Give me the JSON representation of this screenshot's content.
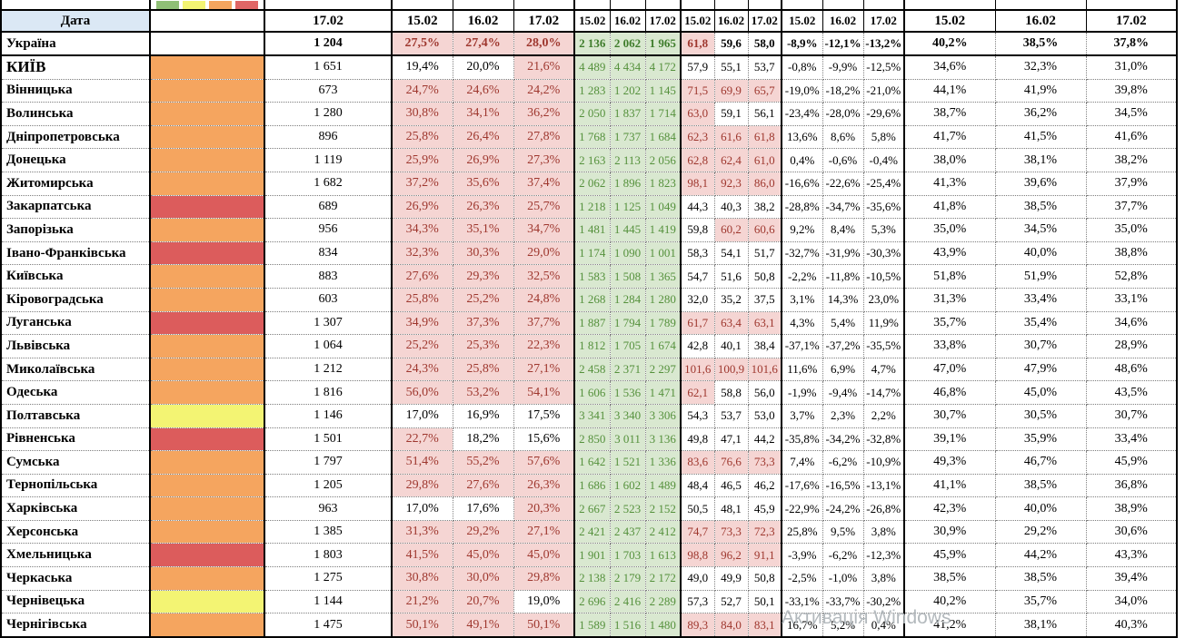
{
  "table": {
    "corner_header": "Дата",
    "single_col_header": "17.02",
    "date_headers": [
      "15.02",
      "16.02",
      "17.02"
    ],
    "group_count": 5
  },
  "legend": {
    "swatches": [
      {
        "name": "green",
        "color": "#8fbf76"
      },
      {
        "name": "yellow",
        "color": "#f3f473"
      },
      {
        "name": "orange",
        "color": "#f5a55f"
      },
      {
        "name": "red",
        "color": "#e06666"
      }
    ]
  },
  "status_colors": {
    "orange": "#f5a55f",
    "red": "#dc5c5c",
    "yellow": "#f3f473"
  },
  "format_rules": {
    "pct_highlight_above": 20,
    "load_highlight_above": 60,
    "highlight_bg": "#f5d5d3",
    "highlight_text": "#9e372e",
    "green_bg": "#d9e8d0",
    "green_text": "#55913c",
    "header_bg": "#dbe8f5"
  },
  "rows": [
    {
      "name": "Україна",
      "status": null,
      "beds": "1 204",
      "pct": [
        "27,5%",
        "27,4%",
        "28,0%"
      ],
      "hosp": [
        "2 136",
        "2 062",
        "1 965"
      ],
      "load": [
        "61,8",
        "59,6",
        "58,0"
      ],
      "dyn": [
        "-8,9%",
        "-12,1%",
        "-13,2%"
      ],
      "share": [
        "40,2%",
        "38,5%",
        "37,8%"
      ]
    },
    {
      "name": "КИЇВ",
      "status": "orange",
      "beds": "1 651",
      "pct": [
        "19,4%",
        "20,0%",
        "21,6%"
      ],
      "hosp": [
        "4 489",
        "4 434",
        "4 172"
      ],
      "load": [
        "57,9",
        "55,1",
        "53,7"
      ],
      "dyn": [
        "-0,8%",
        "-9,9%",
        "-12,5%"
      ],
      "share": [
        "34,6%",
        "32,3%",
        "31,0%"
      ]
    },
    {
      "name": "Вінницька",
      "status": "orange",
      "beds": "673",
      "pct": [
        "24,7%",
        "24,6%",
        "24,2%"
      ],
      "hosp": [
        "1 283",
        "1 202",
        "1 145"
      ],
      "load": [
        "71,5",
        "69,9",
        "65,7"
      ],
      "dyn": [
        "-19,0%",
        "-18,2%",
        "-21,0%"
      ],
      "share": [
        "44,1%",
        "41,9%",
        "39,8%"
      ]
    },
    {
      "name": "Волинська",
      "status": "orange",
      "beds": "1 280",
      "pct": [
        "30,8%",
        "34,1%",
        "36,2%"
      ],
      "hosp": [
        "2 050",
        "1 837",
        "1 714"
      ],
      "load": [
        "63,0",
        "59,1",
        "56,1"
      ],
      "dyn": [
        "-23,4%",
        "-28,0%",
        "-29,6%"
      ],
      "share": [
        "38,7%",
        "36,2%",
        "34,5%"
      ]
    },
    {
      "name": "Дніпропетровська",
      "status": "orange",
      "beds": "896",
      "pct": [
        "25,8%",
        "26,4%",
        "27,8%"
      ],
      "hosp": [
        "1 768",
        "1 737",
        "1 684"
      ],
      "load": [
        "62,3",
        "61,6",
        "61,8"
      ],
      "dyn": [
        "13,6%",
        "8,6%",
        "5,8%"
      ],
      "share": [
        "41,7%",
        "41,5%",
        "41,6%"
      ]
    },
    {
      "name": "Донецька",
      "status": "orange",
      "beds": "1 119",
      "pct": [
        "25,9%",
        "26,9%",
        "27,3%"
      ],
      "hosp": [
        "2 163",
        "2 113",
        "2 056"
      ],
      "load": [
        "62,8",
        "62,4",
        "61,0"
      ],
      "dyn": [
        "0,4%",
        "-0,6%",
        "-0,4%"
      ],
      "share": [
        "38,0%",
        "38,1%",
        "38,2%"
      ]
    },
    {
      "name": "Житомирська",
      "status": "orange",
      "beds": "1 682",
      "pct": [
        "37,2%",
        "35,6%",
        "37,4%"
      ],
      "hosp": [
        "2 062",
        "1 896",
        "1 823"
      ],
      "load": [
        "98,1",
        "92,3",
        "86,0"
      ],
      "dyn": [
        "-16,6%",
        "-22,6%",
        "-25,4%"
      ],
      "share": [
        "41,3%",
        "39,6%",
        "37,9%"
      ]
    },
    {
      "name": "Закарпатська",
      "status": "red",
      "beds": "689",
      "pct": [
        "26,9%",
        "26,3%",
        "25,7%"
      ],
      "hosp": [
        "1 218",
        "1 125",
        "1 049"
      ],
      "load": [
        "44,3",
        "40,3",
        "38,2"
      ],
      "dyn": [
        "-28,8%",
        "-34,7%",
        "-35,6%"
      ],
      "share": [
        "41,8%",
        "38,5%",
        "37,7%"
      ]
    },
    {
      "name": "Запорізька",
      "status": "orange",
      "beds": "956",
      "pct": [
        "34,3%",
        "35,1%",
        "34,7%"
      ],
      "hosp": [
        "1 481",
        "1 445",
        "1 419"
      ],
      "load": [
        "59,8",
        "60,2",
        "60,6"
      ],
      "dyn": [
        "9,2%",
        "8,4%",
        "5,3%"
      ],
      "share": [
        "35,0%",
        "34,5%",
        "35,0%"
      ]
    },
    {
      "name": "Івано-Франківська",
      "status": "red",
      "beds": "834",
      "pct": [
        "32,3%",
        "30,3%",
        "29,0%"
      ],
      "hosp": [
        "1 174",
        "1 090",
        "1 001"
      ],
      "load": [
        "58,3",
        "54,1",
        "51,7"
      ],
      "dyn": [
        "-32,7%",
        "-31,9%",
        "-30,3%"
      ],
      "share": [
        "43,9%",
        "40,0%",
        "38,8%"
      ]
    },
    {
      "name": "Київська",
      "status": "orange",
      "beds": "883",
      "pct": [
        "27,6%",
        "29,3%",
        "32,5%"
      ],
      "hosp": [
        "1 583",
        "1 508",
        "1 365"
      ],
      "load": [
        "54,7",
        "51,6",
        "50,8"
      ],
      "dyn": [
        "-2,2%",
        "-11,8%",
        "-10,5%"
      ],
      "share": [
        "51,8%",
        "51,9%",
        "52,8%"
      ]
    },
    {
      "name": "Кіровоградська",
      "status": "orange",
      "beds": "603",
      "pct": [
        "25,8%",
        "25,2%",
        "24,8%"
      ],
      "hosp": [
        "1 268",
        "1 284",
        "1 280"
      ],
      "load": [
        "32,0",
        "35,2",
        "37,5"
      ],
      "dyn": [
        "3,1%",
        "14,3%",
        "23,0%"
      ],
      "share": [
        "31,3%",
        "33,4%",
        "33,1%"
      ]
    },
    {
      "name": "Луганська",
      "status": "red",
      "beds": "1 307",
      "pct": [
        "34,9%",
        "37,3%",
        "37,7%"
      ],
      "hosp": [
        "1 887",
        "1 794",
        "1 789"
      ],
      "load": [
        "61,7",
        "63,4",
        "63,1"
      ],
      "dyn": [
        "4,3%",
        "5,4%",
        "11,9%"
      ],
      "share": [
        "35,7%",
        "35,4%",
        "34,6%"
      ]
    },
    {
      "name": "Львівська",
      "status": "orange",
      "beds": "1 064",
      "pct": [
        "25,2%",
        "25,3%",
        "22,3%"
      ],
      "hosp": [
        "1 812",
        "1 705",
        "1 674"
      ],
      "load": [
        "42,8",
        "40,1",
        "38,4"
      ],
      "dyn": [
        "-37,1%",
        "-37,2%",
        "-35,5%"
      ],
      "share": [
        "33,8%",
        "30,7%",
        "28,9%"
      ]
    },
    {
      "name": "Миколаївська",
      "status": "orange",
      "beds": "1 212",
      "pct": [
        "24,3%",
        "25,8%",
        "27,1%"
      ],
      "hosp": [
        "2 458",
        "2 371",
        "2 297"
      ],
      "load": [
        "101,6",
        "100,9",
        "101,6"
      ],
      "dyn": [
        "11,6%",
        "6,9%",
        "4,7%"
      ],
      "share": [
        "47,0%",
        "47,9%",
        "48,6%"
      ]
    },
    {
      "name": "Одеська",
      "status": "orange",
      "beds": "1 816",
      "pct": [
        "56,0%",
        "53,2%",
        "54,1%"
      ],
      "hosp": [
        "1 606",
        "1 536",
        "1 471"
      ],
      "load": [
        "62,1",
        "58,8",
        "56,0"
      ],
      "dyn": [
        "-1,9%",
        "-9,4%",
        "-14,7%"
      ],
      "share": [
        "46,8%",
        "45,0%",
        "43,5%"
      ]
    },
    {
      "name": "Полтавська",
      "status": "yellow",
      "beds": "1 146",
      "pct": [
        "17,0%",
        "16,9%",
        "17,5%"
      ],
      "hosp": [
        "3 341",
        "3 340",
        "3 306"
      ],
      "load": [
        "54,3",
        "53,7",
        "53,0"
      ],
      "dyn": [
        "3,7%",
        "2,3%",
        "2,2%"
      ],
      "share": [
        "30,7%",
        "30,5%",
        "30,7%"
      ]
    },
    {
      "name": "Рівненська",
      "status": "red",
      "beds": "1 501",
      "pct": [
        "22,7%",
        "18,2%",
        "15,6%"
      ],
      "hosp": [
        "2 850",
        "3 011",
        "3 136"
      ],
      "load": [
        "49,8",
        "47,1",
        "44,2"
      ],
      "dyn": [
        "-35,8%",
        "-34,2%",
        "-32,8%"
      ],
      "share": [
        "39,1%",
        "35,9%",
        "33,4%"
      ]
    },
    {
      "name": "Сумська",
      "status": "orange",
      "beds": "1 797",
      "pct": [
        "51,4%",
        "55,2%",
        "57,6%"
      ],
      "hosp": [
        "1 642",
        "1 521",
        "1 336"
      ],
      "load": [
        "83,6",
        "76,6",
        "73,3"
      ],
      "dyn": [
        "7,4%",
        "-6,2%",
        "-10,9%"
      ],
      "share": [
        "49,3%",
        "46,7%",
        "45,9%"
      ]
    },
    {
      "name": "Тернопільська",
      "status": "orange",
      "beds": "1 205",
      "pct": [
        "29,8%",
        "27,6%",
        "26,3%"
      ],
      "hosp": [
        "1 686",
        "1 602",
        "1 489"
      ],
      "load": [
        "48,4",
        "46,5",
        "46,2"
      ],
      "dyn": [
        "-17,6%",
        "-16,5%",
        "-13,1%"
      ],
      "share": [
        "41,1%",
        "38,5%",
        "36,8%"
      ]
    },
    {
      "name": "Харківська",
      "status": "orange",
      "beds": "963",
      "pct": [
        "17,0%",
        "17,6%",
        "20,3%"
      ],
      "hosp": [
        "2 667",
        "2 523",
        "2 152"
      ],
      "load": [
        "50,5",
        "48,1",
        "45,9"
      ],
      "dyn": [
        "-22,9%",
        "-24,2%",
        "-26,8%"
      ],
      "share": [
        "42,3%",
        "40,0%",
        "38,9%"
      ]
    },
    {
      "name": "Херсонська",
      "status": "orange",
      "beds": "1 385",
      "pct": [
        "31,3%",
        "29,2%",
        "27,1%"
      ],
      "hosp": [
        "2 421",
        "2 437",
        "2 412"
      ],
      "load": [
        "74,7",
        "73,3",
        "72,3"
      ],
      "dyn": [
        "25,8%",
        "9,5%",
        "3,8%"
      ],
      "share": [
        "30,9%",
        "29,2%",
        "30,6%"
      ]
    },
    {
      "name": "Хмельницька",
      "status": "red",
      "beds": "1 803",
      "pct": [
        "41,5%",
        "45,0%",
        "45,0%"
      ],
      "hosp": [
        "1 901",
        "1 703",
        "1 613"
      ],
      "load": [
        "98,8",
        "96,2",
        "91,1"
      ],
      "dyn": [
        "-3,9%",
        "-6,2%",
        "-12,3%"
      ],
      "share": [
        "45,9%",
        "44,2%",
        "43,3%"
      ]
    },
    {
      "name": "Черкаська",
      "status": "orange",
      "beds": "1 275",
      "pct": [
        "30,8%",
        "30,0%",
        "29,8%"
      ],
      "hosp": [
        "2 138",
        "2 179",
        "2 172"
      ],
      "load": [
        "49,0",
        "49,9",
        "50,8"
      ],
      "dyn": [
        "-2,5%",
        "-1,0%",
        "3,8%"
      ],
      "share": [
        "38,5%",
        "38,5%",
        "39,4%"
      ]
    },
    {
      "name": "Чернівецька",
      "status": "yellow",
      "beds": "1 144",
      "pct": [
        "21,2%",
        "20,7%",
        "19,0%"
      ],
      "hosp": [
        "2 696",
        "2 416",
        "2 289"
      ],
      "load": [
        "57,3",
        "52,7",
        "50,1"
      ],
      "dyn": [
        "-33,1%",
        "-33,7%",
        "-30,2%"
      ],
      "share": [
        "40,2%",
        "35,7%",
        "34,0%"
      ]
    },
    {
      "name": "Чернігівська",
      "status": "orange",
      "beds": "1 475",
      "pct": [
        "50,1%",
        "49,1%",
        "50,1%"
      ],
      "hosp": [
        "1 589",
        "1 516",
        "1 480"
      ],
      "load": [
        "89,3",
        "84,0",
        "83,1"
      ],
      "dyn": [
        "16,7%",
        "5,2%",
        "0,4%"
      ],
      "share": [
        "41,2%",
        "38,1%",
        "40,3%"
      ]
    }
  ],
  "watermark": "Активація Windows"
}
